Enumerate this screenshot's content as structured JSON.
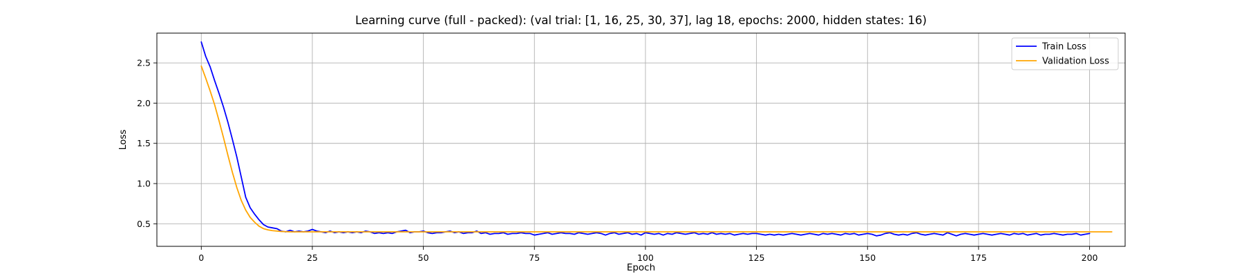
{
  "chart_data": {
    "type": "line",
    "title": "Learning curve (full - packed): (val trial: [1, 16, 25, 30, 37], lag 18, epochs: 2000, hidden states: 16)",
    "xlabel": "Epoch",
    "ylabel": "Loss",
    "xlim": [
      -10,
      208
    ],
    "ylim": [
      0.22,
      2.87
    ],
    "xticks": [
      0,
      25,
      50,
      75,
      100,
      125,
      150,
      175,
      200
    ],
    "yticks": [
      0.5,
      1.0,
      1.5,
      2.0,
      2.5
    ],
    "xtick_labels": [
      "0",
      "25",
      "50",
      "75",
      "100",
      "125",
      "150",
      "175",
      "200"
    ],
    "ytick_labels": [
      "0.5",
      "1.0",
      "1.5",
      "2.0",
      "2.5"
    ],
    "grid": true,
    "legend_position": "top-right",
    "series": [
      {
        "name": "Train Loss",
        "color": "#0000ff",
        "values": [
          2.76,
          2.58,
          2.45,
          2.28,
          2.12,
          1.95,
          1.76,
          1.55,
          1.33,
          1.08,
          0.83,
          0.7,
          0.62,
          0.55,
          0.49,
          0.46,
          0.45,
          0.44,
          0.41,
          0.4,
          0.42,
          0.4,
          0.41,
          0.4,
          0.41,
          0.43,
          0.41,
          0.4,
          0.39,
          0.41,
          0.39,
          0.4,
          0.39,
          0.4,
          0.39,
          0.4,
          0.39,
          0.41,
          0.4,
          0.38,
          0.39,
          0.38,
          0.39,
          0.38,
          0.4,
          0.41,
          0.42,
          0.39,
          0.4,
          0.4,
          0.41,
          0.39,
          0.38,
          0.39,
          0.39,
          0.4,
          0.41,
          0.39,
          0.4,
          0.38,
          0.39,
          0.39,
          0.41,
          0.38,
          0.39,
          0.37,
          0.38,
          0.38,
          0.39,
          0.37,
          0.38,
          0.38,
          0.39,
          0.38,
          0.38,
          0.36,
          0.37,
          0.38,
          0.39,
          0.37,
          0.38,
          0.39,
          0.38,
          0.38,
          0.37,
          0.39,
          0.38,
          0.37,
          0.38,
          0.39,
          0.38,
          0.36,
          0.38,
          0.39,
          0.37,
          0.38,
          0.39,
          0.37,
          0.38,
          0.36,
          0.39,
          0.38,
          0.37,
          0.38,
          0.36,
          0.38,
          0.37,
          0.39,
          0.38,
          0.37,
          0.38,
          0.39,
          0.37,
          0.38,
          0.37,
          0.39,
          0.37,
          0.38,
          0.37,
          0.38,
          0.36,
          0.37,
          0.38,
          0.37,
          0.38,
          0.38,
          0.37,
          0.36,
          0.37,
          0.36,
          0.37,
          0.36,
          0.37,
          0.38,
          0.37,
          0.36,
          0.37,
          0.38,
          0.37,
          0.36,
          0.38,
          0.37,
          0.38,
          0.37,
          0.36,
          0.38,
          0.37,
          0.38,
          0.36,
          0.37,
          0.38,
          0.37,
          0.35,
          0.36,
          0.38,
          0.39,
          0.37,
          0.36,
          0.37,
          0.36,
          0.38,
          0.39,
          0.37,
          0.36,
          0.37,
          0.38,
          0.37,
          0.36,
          0.39,
          0.37,
          0.35,
          0.37,
          0.38,
          0.37,
          0.36,
          0.37,
          0.38,
          0.37,
          0.36,
          0.37,
          0.38,
          0.37,
          0.36,
          0.38,
          0.37,
          0.38,
          0.36,
          0.37,
          0.38,
          0.36,
          0.37,
          0.37,
          0.38,
          0.37,
          0.36,
          0.37,
          0.37,
          0.38,
          0.36,
          0.37,
          0.38
        ]
      },
      {
        "name": "Validation Loss",
        "color": "#ffa500",
        "values": [
          2.46,
          2.31,
          2.15,
          1.98,
          1.78,
          1.57,
          1.35,
          1.14,
          0.95,
          0.79,
          0.67,
          0.58,
          0.52,
          0.47,
          0.44,
          0.425,
          0.415,
          0.41,
          0.405,
          0.402,
          0.4,
          0.4,
          0.4,
          0.4,
          0.4,
          0.4,
          0.4,
          0.4,
          0.4,
          0.4,
          0.4,
          0.4,
          0.4,
          0.4,
          0.4,
          0.4,
          0.4,
          0.4,
          0.4,
          0.4,
          0.4,
          0.4,
          0.4,
          0.4,
          0.4,
          0.4,
          0.4,
          0.4,
          0.4,
          0.4,
          0.4,
          0.4,
          0.4,
          0.4,
          0.4,
          0.4,
          0.4,
          0.4,
          0.4,
          0.4,
          0.4,
          0.4,
          0.4,
          0.4,
          0.4,
          0.4,
          0.4,
          0.4,
          0.4,
          0.4,
          0.4,
          0.4,
          0.4,
          0.4,
          0.4,
          0.4,
          0.4,
          0.4,
          0.4,
          0.4,
          0.4,
          0.4,
          0.4,
          0.4,
          0.4,
          0.4,
          0.4,
          0.4,
          0.4,
          0.4,
          0.4,
          0.4,
          0.4,
          0.4,
          0.4,
          0.4,
          0.4,
          0.4,
          0.4,
          0.4,
          0.4,
          0.4,
          0.4,
          0.4,
          0.4,
          0.4,
          0.4,
          0.4,
          0.4,
          0.4,
          0.4,
          0.4,
          0.4,
          0.4,
          0.4,
          0.4,
          0.4,
          0.4,
          0.4,
          0.4,
          0.4,
          0.4,
          0.4,
          0.4,
          0.4,
          0.4,
          0.4,
          0.4,
          0.4,
          0.4,
          0.4,
          0.4,
          0.4,
          0.4,
          0.4,
          0.4,
          0.4,
          0.4,
          0.4,
          0.4,
          0.4,
          0.4,
          0.4,
          0.4,
          0.4,
          0.4,
          0.4,
          0.4,
          0.4,
          0.4,
          0.4,
          0.4,
          0.4,
          0.4,
          0.4,
          0.4,
          0.4,
          0.4,
          0.4,
          0.4,
          0.4,
          0.4,
          0.4,
          0.4,
          0.4,
          0.4,
          0.4,
          0.4,
          0.4,
          0.4,
          0.4,
          0.4,
          0.4,
          0.4,
          0.4,
          0.4,
          0.4,
          0.4,
          0.4,
          0.4,
          0.4,
          0.4,
          0.4,
          0.4,
          0.4,
          0.4,
          0.4,
          0.4,
          0.4,
          0.4,
          0.4,
          0.4,
          0.4,
          0.4,
          0.4,
          0.4,
          0.4,
          0.4,
          0.4,
          0.4,
          0.4,
          0.4,
          0.4,
          0.4,
          0.4,
          0.4
        ]
      }
    ]
  }
}
